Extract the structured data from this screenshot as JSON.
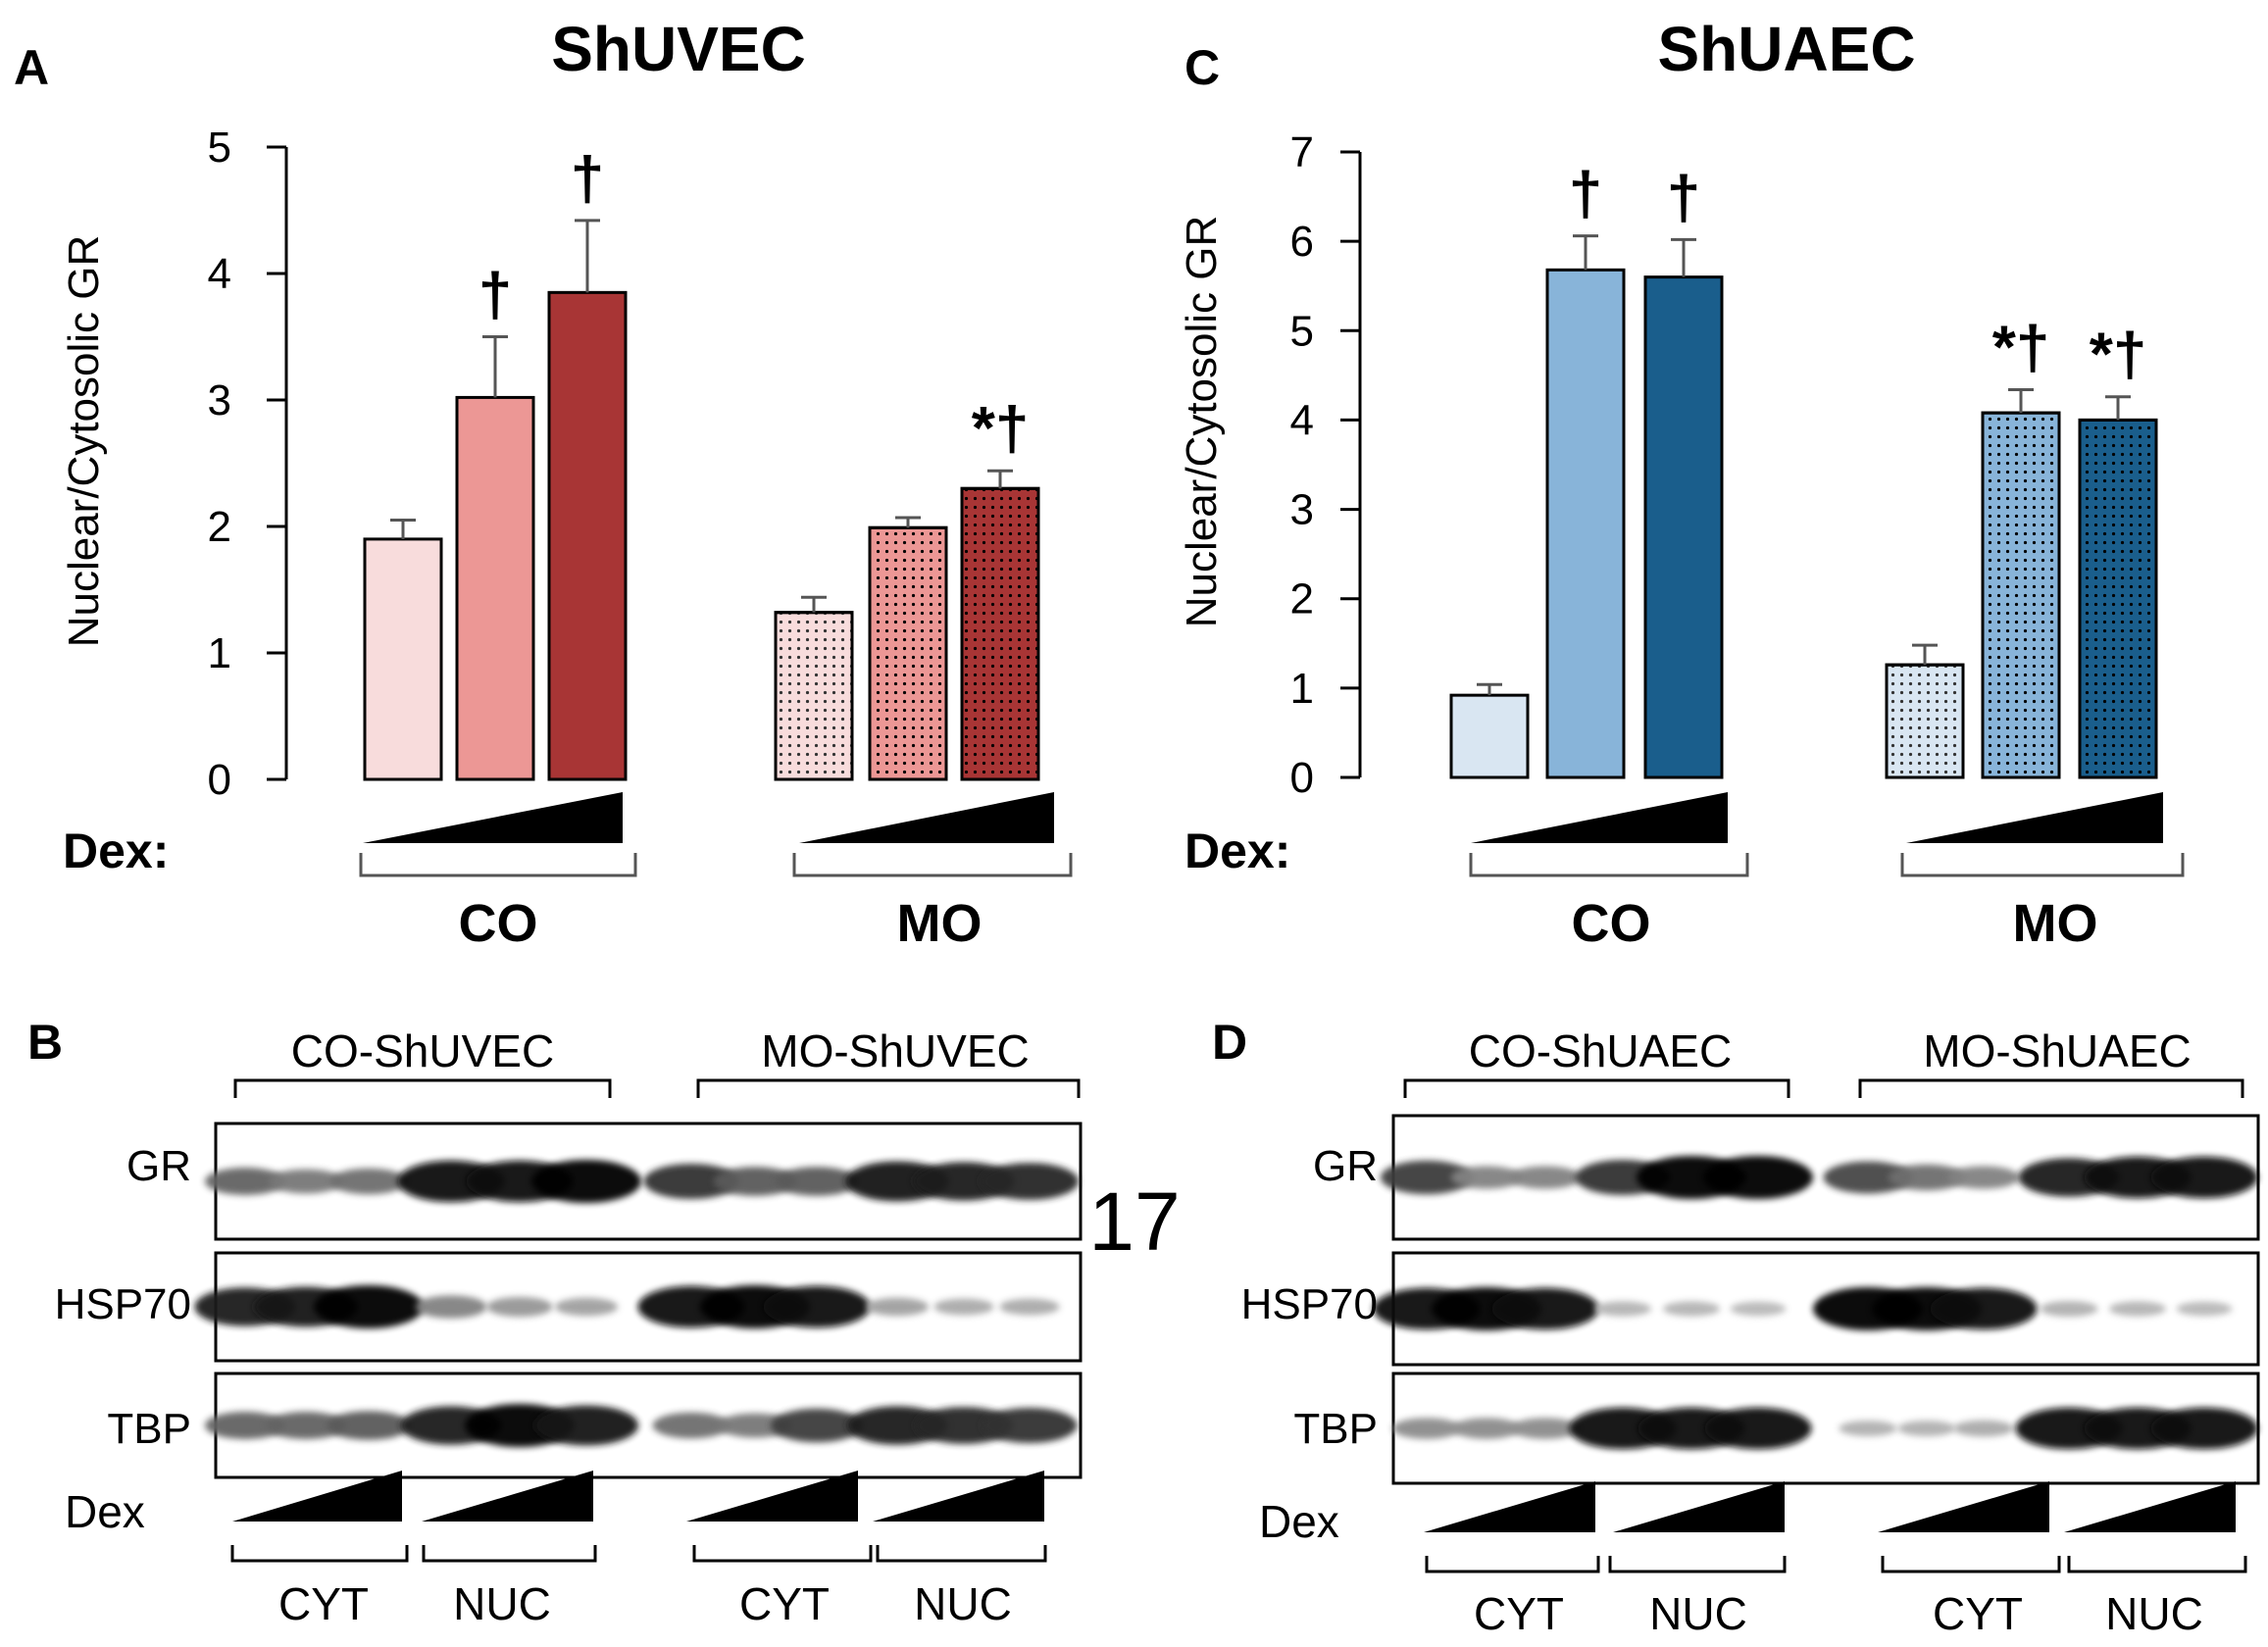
{
  "chart_data": [
    {
      "id": "A",
      "type": "bar",
      "panel_label": "A",
      "title": "ShUVEC",
      "ylabel": "Nuclear/Cytosolic GR",
      "ylim": [
        0,
        5
      ],
      "yticks": [
        "0",
        "1",
        "2",
        "3",
        "4",
        "5"
      ],
      "dex_label": "Dex:",
      "groups": [
        {
          "label": "CO",
          "values": [
            1.9,
            3.02,
            3.85
          ],
          "errors": [
            0.15,
            0.48,
            0.57
          ],
          "marks": [
            "",
            "†",
            "†"
          ],
          "fills": [
            "#f8dcdc",
            "#ec9795",
            "#a83535"
          ],
          "dotted": false
        },
        {
          "label": "MO",
          "values": [
            1.32,
            1.99,
            2.3
          ],
          "errors": [
            0.12,
            0.08,
            0.14
          ],
          "marks": [
            "",
            "",
            "*†"
          ],
          "fills": [
            "#f8dcdc",
            "#ec9795",
            "#a83535"
          ],
          "dotted": true
        }
      ]
    },
    {
      "id": "C",
      "type": "bar",
      "panel_label": "C",
      "title": "ShUAEC",
      "ylabel": "Nuclear/Cytosolic GR",
      "ylim": [
        0,
        7
      ],
      "yticks": [
        "0",
        "1",
        "2",
        "3",
        "4",
        "5",
        "6",
        "7"
      ],
      "dex_label": "Dex:",
      "groups": [
        {
          "label": "CO",
          "values": [
            0.92,
            5.68,
            5.6
          ],
          "errors": [
            0.12,
            0.38,
            0.42
          ],
          "marks": [
            "",
            "†",
            "†"
          ],
          "fills": [
            "#d9e6f2",
            "#88b4d9",
            "#1a5e8c"
          ],
          "dotted": false
        },
        {
          "label": "MO",
          "values": [
            1.26,
            4.08,
            4.0
          ],
          "errors": [
            0.22,
            0.26,
            0.26
          ],
          "marks": [
            "",
            "*†",
            "*†"
          ],
          "fills": [
            "#d9e6f2",
            "#88b4d9",
            "#1a5e8c"
          ],
          "dotted": true
        }
      ]
    }
  ],
  "blots": [
    {
      "id": "B",
      "panel_label": "B",
      "group_labels": [
        "CO-ShUVEC",
        "MO-ShUVEC"
      ],
      "rows": [
        {
          "label": "GR",
          "intensities": [
            0.5,
            0.4,
            0.45,
            0.95,
            0.95,
            1.0,
            0.75,
            0.55,
            0.55,
            0.9,
            0.85,
            0.8
          ]
        },
        {
          "label": "HSP70",
          "intensities": [
            0.85,
            0.9,
            1.0,
            0.35,
            0.25,
            0.2,
            0.95,
            1.0,
            0.95,
            0.2,
            0.15,
            0.15
          ]
        },
        {
          "label": "TBP",
          "intensities": [
            0.5,
            0.5,
            0.55,
            0.85,
            1.0,
            0.9,
            0.45,
            0.4,
            0.7,
            0.85,
            0.8,
            0.75
          ]
        }
      ],
      "side_number": "17",
      "dex_label": "Dex",
      "fraction_labels": [
        "CYT",
        "NUC",
        "CYT",
        "NUC"
      ]
    },
    {
      "id": "D",
      "panel_label": "D",
      "group_labels": [
        "CO-ShUAEC",
        "MO-ShUAEC"
      ],
      "rows": [
        {
          "label": "GR",
          "intensities": [
            0.7,
            0.35,
            0.35,
            0.75,
            1.0,
            1.0,
            0.65,
            0.45,
            0.35,
            0.85,
            0.95,
            0.95
          ]
        },
        {
          "label": "HSP70",
          "intensities": [
            0.95,
            1.0,
            0.95,
            0.1,
            0.1,
            0.08,
            1.0,
            1.0,
            0.95,
            0.12,
            0.1,
            0.08
          ]
        },
        {
          "label": "TBP",
          "intensities": [
            0.3,
            0.3,
            0.3,
            0.95,
            0.95,
            0.95,
            0.12,
            0.12,
            0.15,
            0.95,
            0.95,
            0.95
          ]
        }
      ],
      "dex_label": "Dex",
      "fraction_labels": [
        "CYT",
        "NUC",
        "CYT",
        "NUC"
      ]
    }
  ]
}
